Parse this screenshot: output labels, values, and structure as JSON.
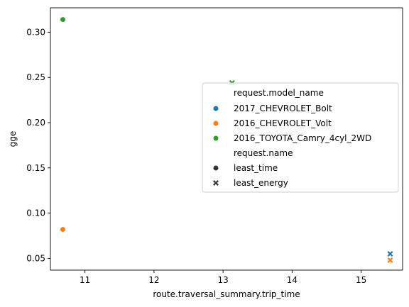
{
  "chart_data": {
    "type": "scatter",
    "title": "",
    "xlabel": "route.traversal_summary.trip_time",
    "ylabel": "gge",
    "xlim": [
      10.5,
      15.6
    ],
    "ylim": [
      0.037,
      0.327
    ],
    "xticks": [
      11,
      12,
      13,
      14,
      15
    ],
    "yticks": [
      0.05,
      0.1,
      0.15,
      0.2,
      0.25,
      0.3
    ],
    "xtick_labels": [
      "11",
      "12",
      "13",
      "14",
      "15"
    ],
    "ytick_labels": [
      "0.05",
      "0.10",
      "0.15",
      "0.20",
      "0.25",
      "0.30"
    ],
    "grid": false,
    "legend": {
      "placement": "center-right",
      "hue_title": "request.model_name",
      "style_title": "request.name"
    },
    "series": [
      {
        "name": "2017_CHEVROLET_Bolt",
        "color": "#1f77b4"
      },
      {
        "name": "2016_CHEVROLET_Volt",
        "color": "#ff7f0e"
      },
      {
        "name": "2016_TOYOTA_Camry_4cyl_2WD",
        "color": "#2ca02c"
      }
    ],
    "markers": [
      {
        "name": "least_time",
        "marker": "circle"
      },
      {
        "name": "least_energy",
        "marker": "x"
      }
    ],
    "points": [
      {
        "model": "2017_CHEVROLET_Bolt",
        "request": "least_energy",
        "x": 15.42,
        "y": 0.055
      },
      {
        "model": "2016_CHEVROLET_Volt",
        "request": "least_time",
        "x": 10.68,
        "y": 0.082
      },
      {
        "model": "2016_CHEVROLET_Volt",
        "request": "least_energy",
        "x": 15.42,
        "y": 0.048
      },
      {
        "model": "2016_TOYOTA_Camry_4cyl_2WD",
        "request": "least_time",
        "x": 10.68,
        "y": 0.314
      },
      {
        "model": "2016_TOYOTA_Camry_4cyl_2WD",
        "request": "least_energy",
        "x": 13.13,
        "y": 0.244
      }
    ]
  }
}
